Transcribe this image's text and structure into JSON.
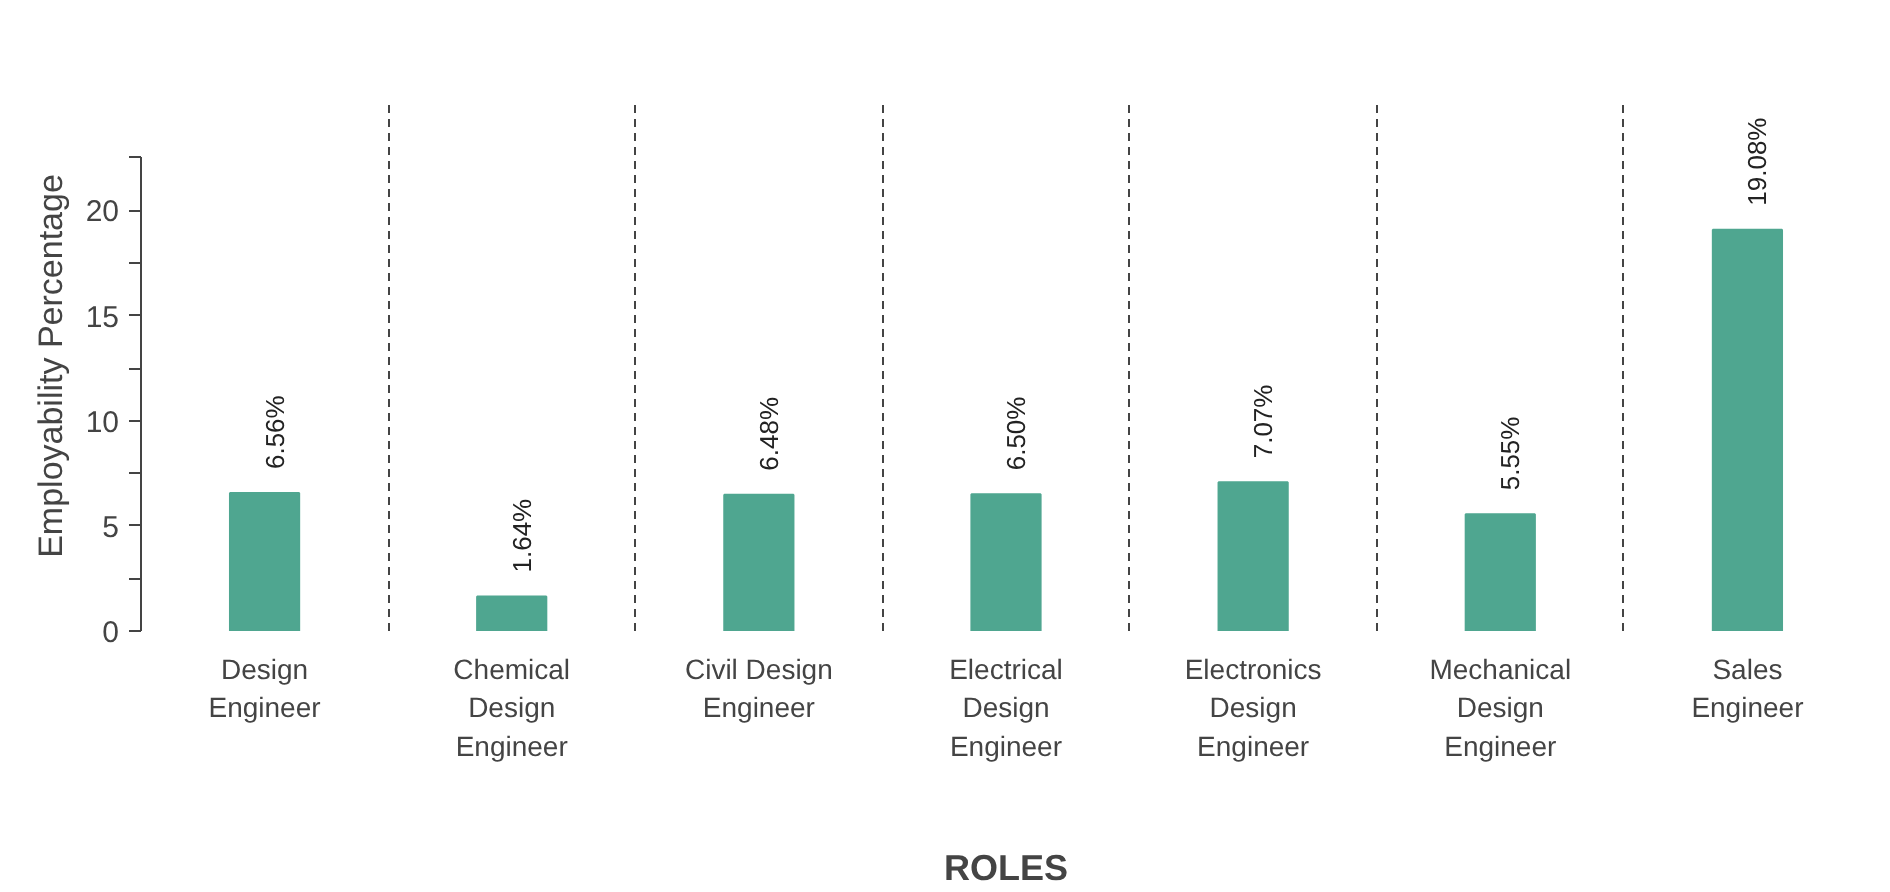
{
  "chart_data": {
    "type": "bar",
    "xlabel": "ROLES",
    "ylabel": "Employability Percentage",
    "categories": [
      "Design Engineer",
      "Chemical Design Engineer",
      "Civil Design Engineer",
      "Electrical Design Engineer",
      "Electronics Design Engineer",
      "Mechanical Design Engineer",
      "Sales Engineer"
    ],
    "values": [
      6.56,
      1.64,
      6.48,
      6.5,
      7.07,
      5.55,
      19.08
    ],
    "value_labels": [
      "6.56%",
      "1.64%",
      "6.48%",
      "6.50%",
      "7.07%",
      "5.55%",
      "19.08%"
    ],
    "color": "#4fa690",
    "ylim": [
      0,
      22.5
    ],
    "yticks": [
      0,
      {
        "value": 2.5,
        "label": null
      },
      5,
      {
        "value": 7.5,
        "label": null
      },
      10,
      {
        "value": 12.5,
        "label": null
      },
      15,
      {
        "value": 17.5,
        "label": null
      },
      20,
      {
        "value": 22.5,
        "label": null
      }
    ],
    "grid": "x",
    "line_style": "dashed"
  }
}
